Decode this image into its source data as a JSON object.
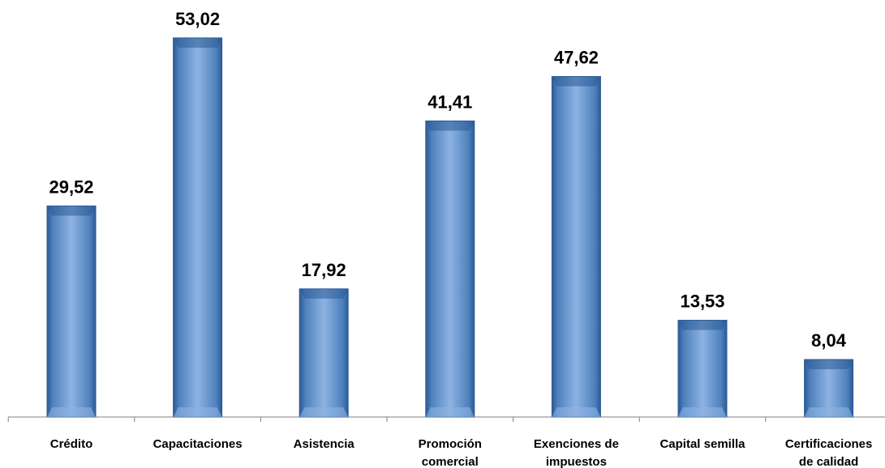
{
  "chart_data": {
    "type": "bar",
    "categories": [
      "Crédito",
      "Capacitaciones",
      "Asistencia",
      "Promoción comercial",
      "Exenciones de impuestos",
      "Capital semilla",
      "Certificaciones de calidad"
    ],
    "category_lines": [
      [
        "Crédito"
      ],
      [
        "Capacitaciones"
      ],
      [
        "Asistencia"
      ],
      [
        "Promoción",
        "comercial"
      ],
      [
        "Exenciones de",
        "impuestos"
      ],
      [
        "Capital semilla"
      ],
      [
        "Certificaciones",
        "de calidad"
      ]
    ],
    "values": [
      29.52,
      53.02,
      17.92,
      41.41,
      47.62,
      13.53,
      8.04
    ],
    "value_labels": [
      "29,52",
      "53,02",
      "17,92",
      "41,41",
      "47,62",
      "13,53",
      "8,04"
    ],
    "ylim": [
      0,
      60
    ],
    "grid": false,
    "legend": "none",
    "colors": {
      "bar": "#4f81bd",
      "bar_light": "#8db3e2",
      "bar_dark": "#2c5b96",
      "axis": "#808080"
    }
  }
}
